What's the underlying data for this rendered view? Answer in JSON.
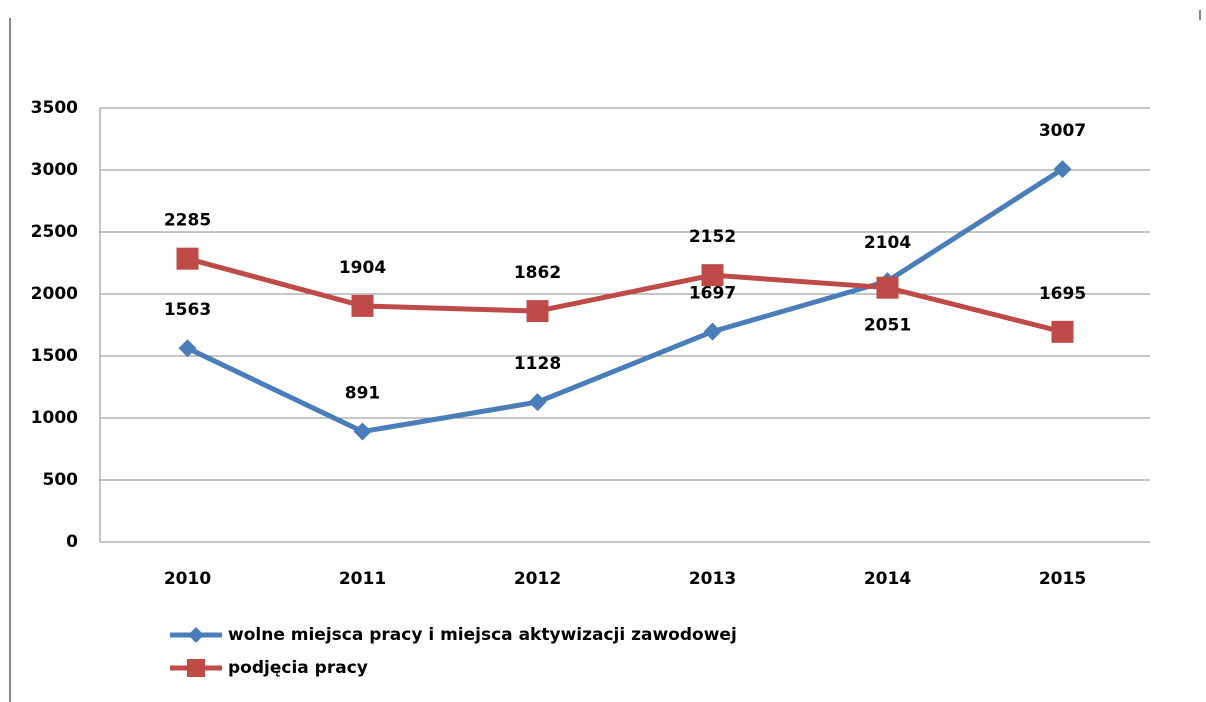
{
  "chart_data": {
    "type": "line",
    "categories": [
      "2010",
      "2011",
      "2012",
      "2013",
      "2014",
      "2015"
    ],
    "series": [
      {
        "name": "wolne miejsca pracy i miejsca aktywizacji zawodowej",
        "color": "#4a7ebb",
        "marker": "diamond",
        "values": [
          1563,
          891,
          1128,
          1697,
          2104,
          3007
        ]
      },
      {
        "name": "podjęcia pracy",
        "color": "#be4b48",
        "marker": "square",
        "values": [
          2285,
          1904,
          1862,
          2152,
          2051,
          1695
        ]
      }
    ],
    "ylim": [
      0,
      3500
    ],
    "yticks": [
      0,
      500,
      1000,
      1500,
      2000,
      2500,
      3000,
      3500
    ],
    "grid": true
  }
}
